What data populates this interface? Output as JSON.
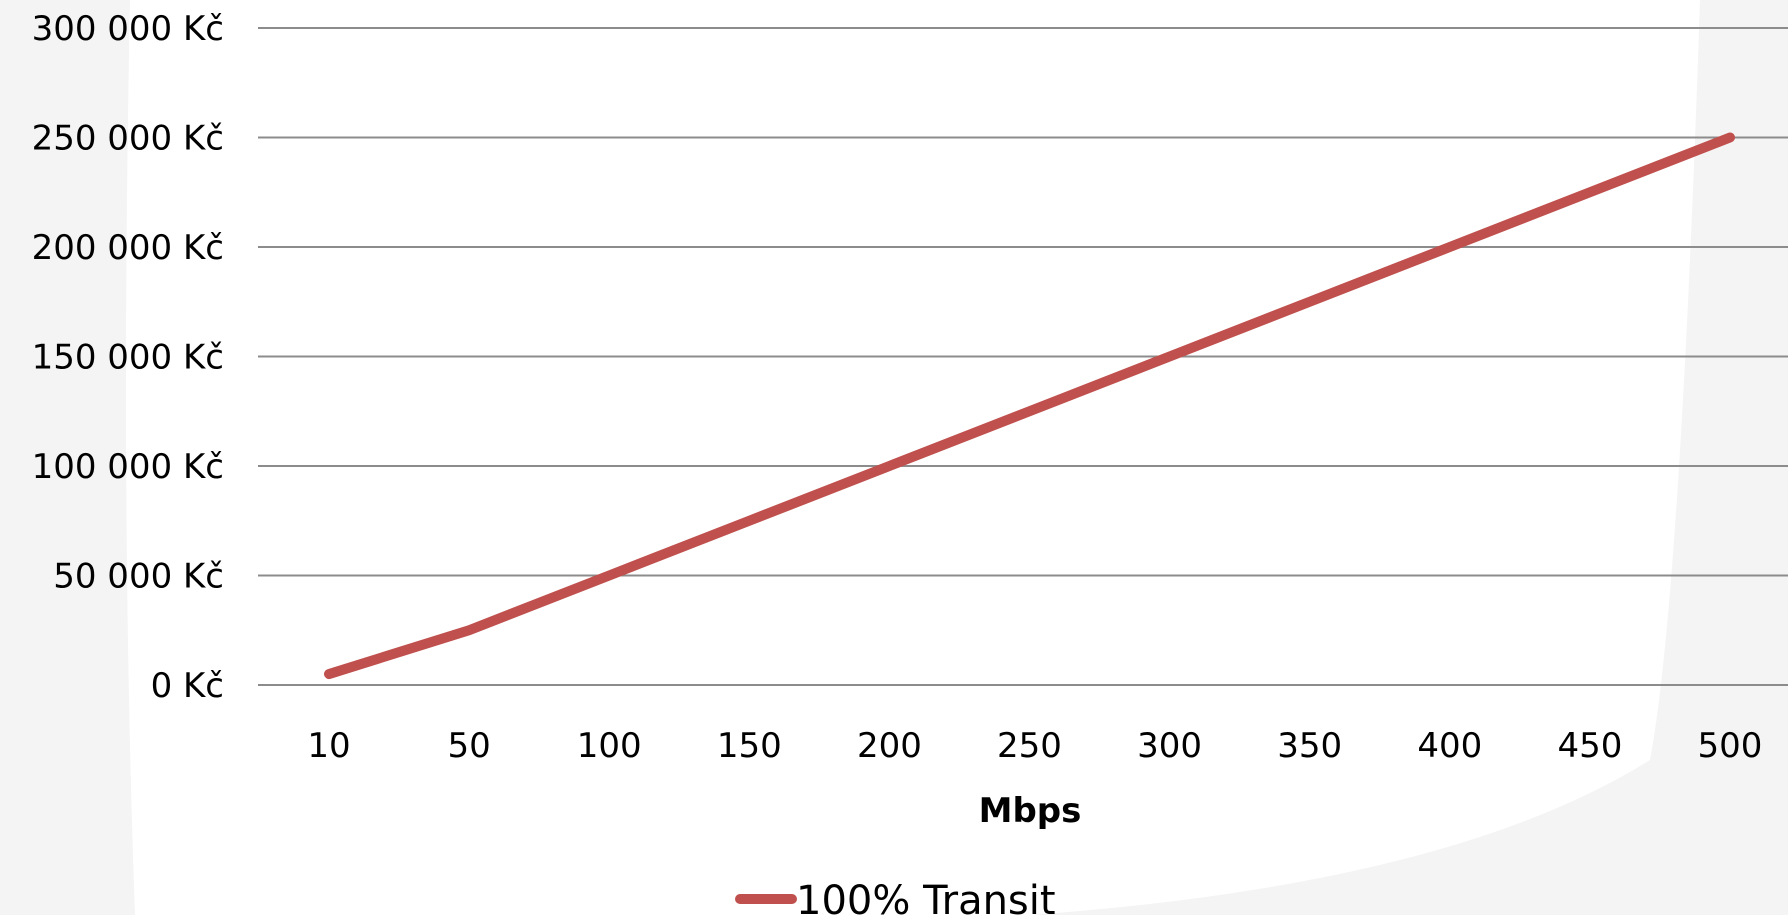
{
  "chart_data": {
    "type": "line",
    "title": "",
    "xlabel": "Mbps",
    "ylabel": "",
    "categories": [
      "10",
      "50",
      "100",
      "150",
      "200",
      "250",
      "300",
      "350",
      "400",
      "450",
      "500"
    ],
    "y_tick_labels": [
      "0 Kč",
      "50 000 Kč",
      "100 000 Kč",
      "150 000 Kč",
      "200 000 Kč",
      "250 000 Kč",
      "300 000 Kč"
    ],
    "y_ticks": [
      0,
      50000,
      100000,
      150000,
      200000,
      250000,
      300000
    ],
    "ylim": [
      0,
      300000
    ],
    "grid": true,
    "legend_placement": "bottom-center",
    "series": [
      {
        "name": "100% Transit",
        "color": "#c0504d",
        "values": [
          5000,
          25000,
          50000,
          75000,
          100000,
          125000,
          150000,
          175000,
          200000,
          225000,
          250000
        ]
      }
    ]
  }
}
